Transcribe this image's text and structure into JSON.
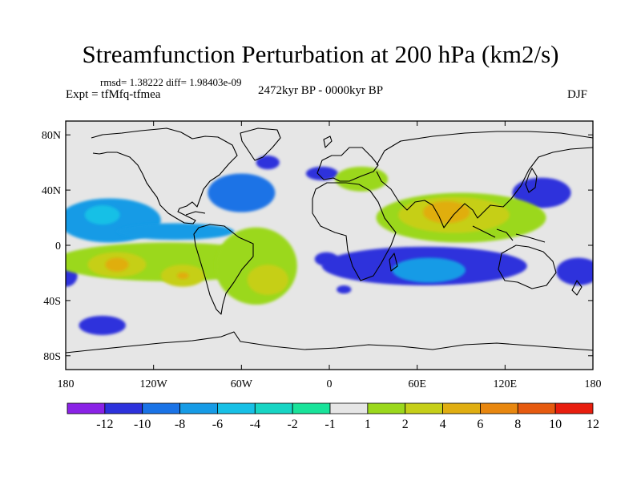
{
  "title": "Streamfunction Perturbation at 200 hPa (km2/s)",
  "stats": "rmsd= 1.38222 diff= 1.98403e-09",
  "expt": "Expt = tfMfq-tfmea",
  "period": "2472kyr BP - 0000kyr BP",
  "season": "DJF",
  "chart_data": {
    "type": "heatmap",
    "projection": "cylindrical-equidistant",
    "xlim": [
      -180,
      180
    ],
    "ylim": [
      -90,
      90
    ],
    "x_ticks": [
      {
        "v": -180,
        "label": "180"
      },
      {
        "v": -120,
        "label": "120W"
      },
      {
        "v": -60,
        "label": "60W"
      },
      {
        "v": 0,
        "label": "0"
      },
      {
        "v": 60,
        "label": "60E"
      },
      {
        "v": 120,
        "label": "120E"
      },
      {
        "v": 180,
        "label": "180"
      }
    ],
    "y_ticks": [
      {
        "v": 80,
        "label": "80N"
      },
      {
        "v": 40,
        "label": "40N"
      },
      {
        "v": 0,
        "label": "0"
      },
      {
        "v": -40,
        "label": "40S"
      },
      {
        "v": -80,
        "label": "80S"
      }
    ],
    "colorbar": {
      "bounds": [
        "-12",
        "-10",
        "-8",
        "-6",
        "-4",
        "-2",
        "-1",
        "1",
        "2",
        "4",
        "6",
        "8",
        "10",
        "12"
      ],
      "colors": [
        "#8a22e6",
        "#2d32dc",
        "#1a73e6",
        "#169be6",
        "#17c0e6",
        "#17d5c4",
        "#19e39a",
        "#e6e6e6",
        "#9bd81c",
        "#c6cf19",
        "#e0ae11",
        "#e8870f",
        "#e65a0f",
        "#e81e0e"
      ]
    },
    "field": [
      {
        "lon": -150,
        "lat": 18,
        "rx": 35,
        "ry": 16,
        "level": 3
      },
      {
        "lon": -155,
        "lat": 22,
        "rx": 12,
        "ry": 7,
        "level": 4
      },
      {
        "lon": -105,
        "lat": 10,
        "rx": 40,
        "ry": 6,
        "level": 3
      },
      {
        "lon": -60,
        "lat": 38,
        "rx": 23,
        "ry": 14,
        "level": 2
      },
      {
        "lon": -42,
        "lat": 60,
        "rx": 8,
        "ry": 5,
        "level": 1
      },
      {
        "lon": -5,
        "lat": 52,
        "rx": 11,
        "ry": 5,
        "level": 1
      },
      {
        "lon": -180,
        "lat": -22,
        "rx": 8,
        "ry": 8,
        "level": 1
      },
      {
        "lon": -155,
        "lat": -58,
        "rx": 16,
        "ry": 7,
        "level": 1
      },
      {
        "lon": -2,
        "lat": -10,
        "rx": 8,
        "ry": 5,
        "level": 1
      },
      {
        "lon": 10,
        "lat": -32,
        "rx": 5,
        "ry": 3,
        "level": 1
      },
      {
        "lon": 170,
        "lat": -19,
        "rx": 15,
        "ry": 10,
        "level": 1
      },
      {
        "lon": 145,
        "lat": 38,
        "rx": 20,
        "ry": 11,
        "level": 1
      },
      {
        "lon": 65,
        "lat": -15,
        "rx": 70,
        "ry": 14,
        "level": 1
      },
      {
        "lon": 68,
        "lat": -18,
        "rx": 25,
        "ry": 9,
        "level": 3
      },
      {
        "lon": 22,
        "lat": 48,
        "rx": 18,
        "ry": 9,
        "level": 8
      },
      {
        "lon": -110,
        "lat": -12,
        "rx": 78,
        "ry": 14,
        "level": 8
      },
      {
        "lon": -50,
        "lat": -15,
        "rx": 28,
        "ry": 28,
        "level": 8
      },
      {
        "lon": -145,
        "lat": -14,
        "rx": 20,
        "ry": 9,
        "level": 9
      },
      {
        "lon": -145,
        "lat": -14,
        "rx": 8,
        "ry": 5,
        "level": 10
      },
      {
        "lon": -100,
        "lat": -22,
        "rx": 15,
        "ry": 8,
        "level": 9
      },
      {
        "lon": -100,
        "lat": -22,
        "rx": 4,
        "ry": 2.5,
        "level": 10
      },
      {
        "lon": -42,
        "lat": -25,
        "rx": 14,
        "ry": 11,
        "level": 9
      },
      {
        "lon": 90,
        "lat": 20,
        "rx": 58,
        "ry": 18,
        "level": 8
      },
      {
        "lon": 85,
        "lat": 22,
        "rx": 38,
        "ry": 13,
        "level": 9
      },
      {
        "lon": 80,
        "lat": 24,
        "rx": 16,
        "ry": 8,
        "level": 10
      }
    ]
  }
}
